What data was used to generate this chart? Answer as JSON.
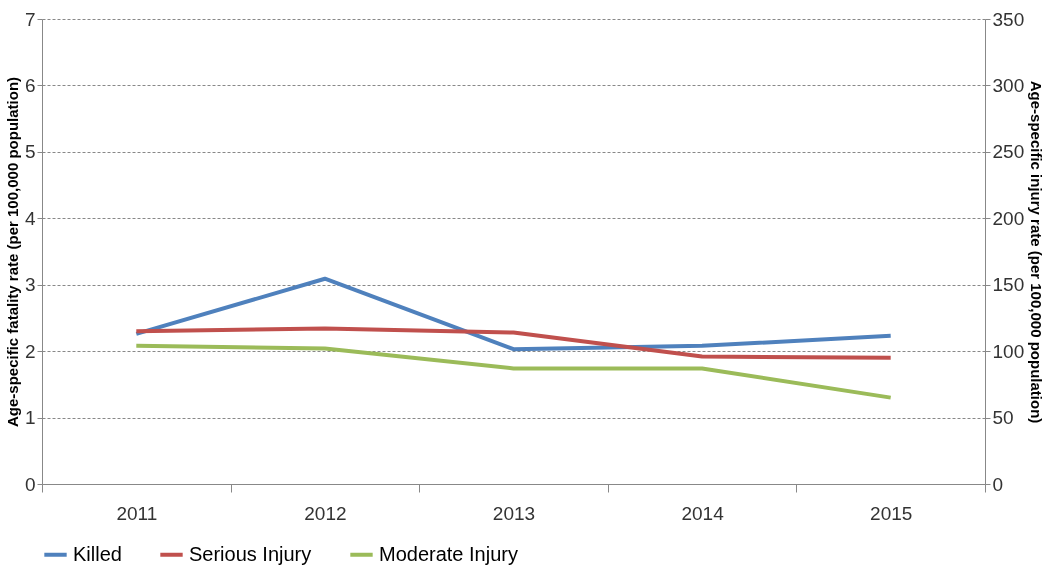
{
  "chart_data": {
    "type": "line",
    "categories": [
      "2011",
      "2012",
      "2013",
      "2014",
      "2015"
    ],
    "ylabel": "Age-specific fatality rate (per 100,000 population)",
    "y2label": "Age-specific injury rate (per 100,000 population)",
    "ylim": [
      0,
      7
    ],
    "yticks": [
      0,
      1,
      2,
      3,
      4,
      5,
      6,
      7
    ],
    "y2lim": [
      0,
      350
    ],
    "y2ticks": [
      0,
      50,
      100,
      150,
      200,
      250,
      300,
      350
    ],
    "grid": "y",
    "legend": "bottom",
    "marker": "none",
    "line_style": "solid",
    "series": [
      {
        "name": "Killed",
        "color": "#4f81bd",
        "values": [
          2.26,
          3.09,
          2.03,
          2.08,
          2.23
        ]
      },
      {
        "name": "Serious Injury",
        "color": "#c0504d",
        "axis": "y2",
        "values": [
          115,
          117,
          114,
          96,
          95
        ]
      },
      {
        "name": "Moderate Injury",
        "color": "#9bbb59",
        "axis": "y2",
        "values": [
          104,
          102,
          87,
          87,
          65
        ]
      }
    ]
  }
}
